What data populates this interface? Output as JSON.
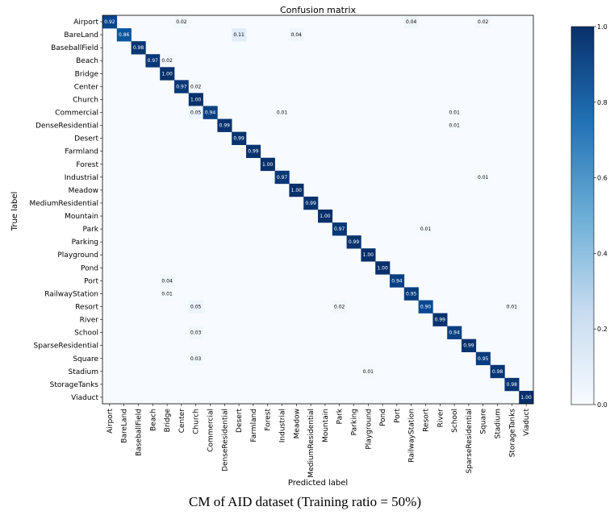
{
  "chart_data": {
    "type": "heatmap",
    "title": "Confusion matrix",
    "xlabel": "Predicted label",
    "ylabel": "True label",
    "categories": [
      "Airport",
      "BareLand",
      "BaseballField",
      "Beach",
      "Bridge",
      "Center",
      "Church",
      "Commercial",
      "DenseResidential",
      "Desert",
      "Farmland",
      "Forest",
      "Industrial",
      "Meadow",
      "MediumResidential",
      "Mountain",
      "Park",
      "Parking",
      "Playground",
      "Pond",
      "Port",
      "RailwayStation",
      "Resort",
      "River",
      "School",
      "SparseResidential",
      "Square",
      "Stadium",
      "StorageTanks",
      "Viaduct"
    ],
    "colorbar": {
      "min": 0.0,
      "max": 1.0,
      "ticks": [
        "0.0",
        "0.2",
        "0.4",
        "0.6",
        "0.8",
        "1.0"
      ],
      "colormap": "Blues"
    },
    "cells": [
      {
        "row": 0,
        "col": 0,
        "value": 0.92,
        "label": "0.92"
      },
      {
        "row": 0,
        "col": 5,
        "value": 0.02,
        "label": "0.02"
      },
      {
        "row": 0,
        "col": 21,
        "value": 0.04,
        "label": "0.04"
      },
      {
        "row": 0,
        "col": 26,
        "value": 0.02,
        "label": "0.02"
      },
      {
        "row": 1,
        "col": 1,
        "value": 0.86,
        "label": "0.86"
      },
      {
        "row": 1,
        "col": 9,
        "value": 0.11,
        "label": "0.11"
      },
      {
        "row": 1,
        "col": 13,
        "value": 0.04,
        "label": "0.04"
      },
      {
        "row": 2,
        "col": 2,
        "value": 0.98,
        "label": "0.98"
      },
      {
        "row": 3,
        "col": 3,
        "value": 0.97,
        "label": "0.97"
      },
      {
        "row": 3,
        "col": 4,
        "value": 0.02,
        "label": "0.02"
      },
      {
        "row": 4,
        "col": 4,
        "value": 1.0,
        "label": "1.00"
      },
      {
        "row": 5,
        "col": 5,
        "value": 0.97,
        "label": "0.97"
      },
      {
        "row": 5,
        "col": 6,
        "value": 0.02,
        "label": "0.02"
      },
      {
        "row": 6,
        "col": 6,
        "value": 1.0,
        "label": "1.00"
      },
      {
        "row": 7,
        "col": 6,
        "value": 0.05,
        "label": "0.05"
      },
      {
        "row": 7,
        "col": 7,
        "value": 0.94,
        "label": "0.94"
      },
      {
        "row": 7,
        "col": 12,
        "value": 0.01,
        "label": "0.01"
      },
      {
        "row": 7,
        "col": 24,
        "value": 0.01,
        "label": "0.01"
      },
      {
        "row": 8,
        "col": 8,
        "value": 0.99,
        "label": "0.99"
      },
      {
        "row": 8,
        "col": 24,
        "value": 0.01,
        "label": "0.01"
      },
      {
        "row": 9,
        "col": 9,
        "value": 0.99,
        "label": "0.99"
      },
      {
        "row": 10,
        "col": 10,
        "value": 0.99,
        "label": "0.99"
      },
      {
        "row": 11,
        "col": 11,
        "value": 1.0,
        "label": "1.00"
      },
      {
        "row": 12,
        "col": 12,
        "value": 0.97,
        "label": "0.97"
      },
      {
        "row": 12,
        "col": 26,
        "value": 0.01,
        "label": "0.01"
      },
      {
        "row": 13,
        "col": 13,
        "value": 1.0,
        "label": "1.00"
      },
      {
        "row": 14,
        "col": 14,
        "value": 0.99,
        "label": "0.99"
      },
      {
        "row": 15,
        "col": 15,
        "value": 1.0,
        "label": "1.00"
      },
      {
        "row": 16,
        "col": 16,
        "value": 0.97,
        "label": "0.97"
      },
      {
        "row": 16,
        "col": 22,
        "value": 0.01,
        "label": "0.01"
      },
      {
        "row": 17,
        "col": 17,
        "value": 0.99,
        "label": "0.99"
      },
      {
        "row": 18,
        "col": 18,
        "value": 1.0,
        "label": "1.00"
      },
      {
        "row": 19,
        "col": 19,
        "value": 1.0,
        "label": "1.00"
      },
      {
        "row": 20,
        "col": 4,
        "value": 0.04,
        "label": "0.04"
      },
      {
        "row": 20,
        "col": 20,
        "value": 0.94,
        "label": "0.94"
      },
      {
        "row": 21,
        "col": 4,
        "value": 0.01,
        "label": "0.01"
      },
      {
        "row": 21,
        "col": 21,
        "value": 0.95,
        "label": "0.95"
      },
      {
        "row": 22,
        "col": 6,
        "value": 0.05,
        "label": "0.05"
      },
      {
        "row": 22,
        "col": 16,
        "value": 0.02,
        "label": "0.02"
      },
      {
        "row": 22,
        "col": 22,
        "value": 0.9,
        "label": "0.90"
      },
      {
        "row": 22,
        "col": 28,
        "value": 0.01,
        "label": "0.01"
      },
      {
        "row": 23,
        "col": 23,
        "value": 0.99,
        "label": "0.99"
      },
      {
        "row": 24,
        "col": 6,
        "value": 0.03,
        "label": "0.03"
      },
      {
        "row": 24,
        "col": 24,
        "value": 0.94,
        "label": "0.94"
      },
      {
        "row": 25,
        "col": 25,
        "value": 0.99,
        "label": "0.99"
      },
      {
        "row": 26,
        "col": 6,
        "value": 0.03,
        "label": "0.03"
      },
      {
        "row": 26,
        "col": 26,
        "value": 0.95,
        "label": "0.95"
      },
      {
        "row": 27,
        "col": 18,
        "value": 0.01,
        "label": "0.01"
      },
      {
        "row": 27,
        "col": 27,
        "value": 0.98,
        "label": "0.98"
      },
      {
        "row": 28,
        "col": 28,
        "value": 0.98,
        "label": "0.98"
      },
      {
        "row": 29,
        "col": 29,
        "value": 1.0,
        "label": "1.00"
      }
    ]
  },
  "caption": "CM of AID dataset (Training ratio = 50%)"
}
